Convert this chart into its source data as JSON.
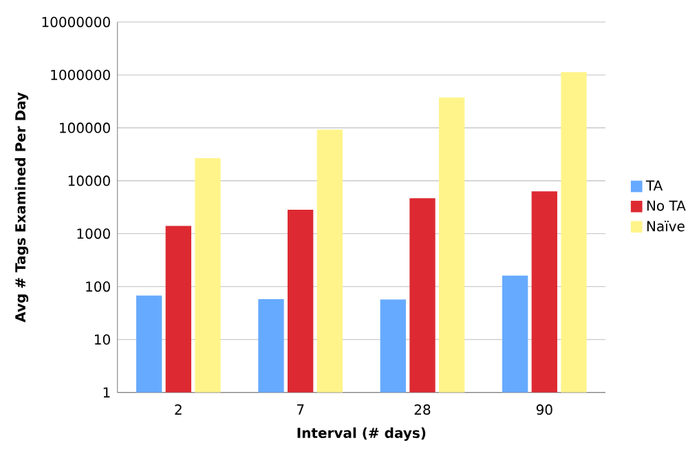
{
  "chart_data": {
    "type": "bar",
    "xlabel": "Interval (# days)",
    "ylabel": "Avg # Tags Examined Per Day",
    "categories": [
      "2",
      "7",
      "28",
      "90"
    ],
    "series": [
      {
        "name": "TA",
        "color": "#66aaff",
        "values": [
          68,
          58,
          57,
          162
        ]
      },
      {
        "name": "No TA",
        "color": "#dd2a32",
        "values": [
          1400,
          2830,
          4680,
          6310
        ]
      },
      {
        "name": "Naïve",
        "color": "#fff48a",
        "values": [
          26700,
          92300,
          375000,
          1130000
        ]
      }
    ],
    "log": "y",
    "ylim": [
      1,
      10000000
    ],
    "yticks": [
      1,
      10,
      100,
      1000,
      10000,
      100000,
      1000000,
      10000000
    ],
    "grid": "y",
    "legend": "right"
  }
}
